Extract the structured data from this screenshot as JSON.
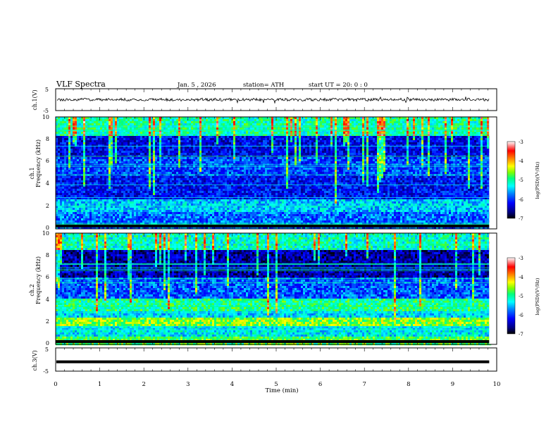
{
  "header": {
    "title": "VLF  Spectra",
    "date": "Jan.  5  , 2026",
    "station": "station= ATH",
    "start": "start  UT  =    20: 0   : 0"
  },
  "chart_data": [
    {
      "type": "line",
      "ylabel": "ch.1(V)",
      "ylim": [
        -5,
        5
      ],
      "yticks": [
        "5",
        "-5"
      ],
      "xlim": [
        0,
        10
      ],
      "data_end_min": 9.83,
      "note_values": "waveform oscillating around 0 V with small amplitude (~±1 V)"
    },
    {
      "type": "heatmap",
      "ylabel_channel": "ch.1",
      "ylabel": "Frequency  (kHz)",
      "ylim": [
        0,
        10
      ],
      "yticks": [
        "0",
        "2",
        "4",
        "6",
        "8",
        "10"
      ],
      "xlim": [
        0,
        10
      ],
      "data_end_min": 9.83,
      "colorbar": {
        "label": "log(PSD)(V²/Hz)",
        "ticks": [
          "-3",
          "-4",
          "-5",
          "-6",
          "-7"
        ],
        "range": [
          -7,
          -3
        ]
      }
    },
    {
      "type": "heatmap",
      "ylabel_channel": "ch.2",
      "ylabel": "Frequency  (kHz)",
      "ylim": [
        0,
        10
      ],
      "yticks": [
        "0",
        "2",
        "4",
        "6",
        "8",
        "10"
      ],
      "xlim": [
        0,
        10
      ],
      "data_end_min": 9.83,
      "colorbar": {
        "label": "log(PSD)(V²/Hz)",
        "ticks": [
          "-3",
          "-4",
          "-5",
          "-6",
          "-7"
        ],
        "range": [
          -7,
          -3
        ]
      }
    },
    {
      "type": "line",
      "ylabel": "ch.3(V)",
      "ylim": [
        -5,
        5
      ],
      "yticks": [
        "5",
        "-5"
      ],
      "xlim": [
        0,
        10
      ],
      "xlabel": "Time  (min)",
      "xticks": [
        "0",
        "1",
        "2",
        "3",
        "4",
        "5",
        "6",
        "7",
        "8",
        "9",
        "10"
      ],
      "data_end_min": 9.83,
      "note_values": "flat line at about -1 V"
    }
  ],
  "colors": {
    "cmap": [
      "#000000",
      "#000080",
      "#0000ff",
      "#0080ff",
      "#00ffff",
      "#00ff80",
      "#80ff00",
      "#ffff00",
      "#ff8000",
      "#ff0000",
      "#ffffff"
    ]
  }
}
